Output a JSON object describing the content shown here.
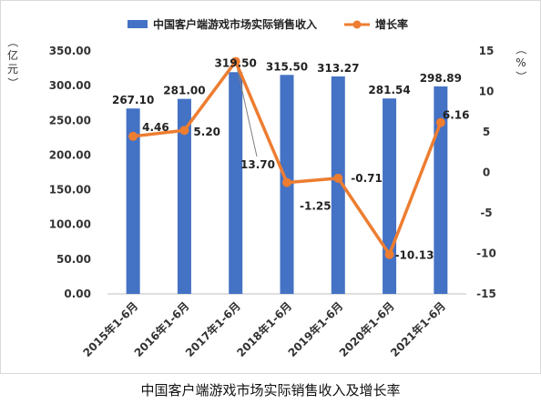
{
  "chart_data": {
    "type": "bar",
    "categories": [
      "2015年1-6月",
      "2016年1-6月",
      "2017年1-6月",
      "2018年1-6月",
      "2019年1-6月",
      "2020年1-6月",
      "2021年1-6月"
    ],
    "series": [
      {
        "name": "中国客户端游戏市场实际销售收入",
        "type": "bar",
        "axis": "left",
        "values": [
          267.1,
          281.0,
          319.5,
          315.5,
          313.27,
          281.54,
          298.89
        ],
        "labels": [
          "267.10",
          "281.00",
          "319.50",
          "315.50",
          "313.27",
          "281.54",
          "298.89"
        ],
        "color": "#4472C4"
      },
      {
        "name": "增长率",
        "type": "line",
        "axis": "right",
        "values": [
          4.46,
          5.2,
          13.7,
          -1.25,
          -0.71,
          -10.13,
          6.16
        ],
        "labels": [
          "4.46",
          "5.20",
          "13.70",
          "-1.25",
          "-0.71",
          "-10.13",
          "6.16"
        ],
        "color": "#ED7D31"
      }
    ],
    "y_left": {
      "label": "（亿元）",
      "ylim": [
        0,
        350
      ],
      "ticks": [
        0,
        50,
        100,
        150,
        200,
        250,
        300,
        350
      ],
      "tick_labels": [
        "0.00",
        "50.00",
        "100.00",
        "150.00",
        "200.00",
        "250.00",
        "300.00",
        "350.00"
      ]
    },
    "y_right": {
      "label": "（%）",
      "ylim": [
        -15,
        15
      ],
      "ticks": [
        -15,
        -10,
        -5,
        0,
        5,
        10,
        15
      ],
      "tick_labels": [
        "-15",
        "-10",
        "-5",
        "0",
        "5",
        "10",
        "15"
      ]
    },
    "legend_position": "top",
    "grid": false
  },
  "caption": "中国客户端游戏市场实际销售收入及增长率"
}
